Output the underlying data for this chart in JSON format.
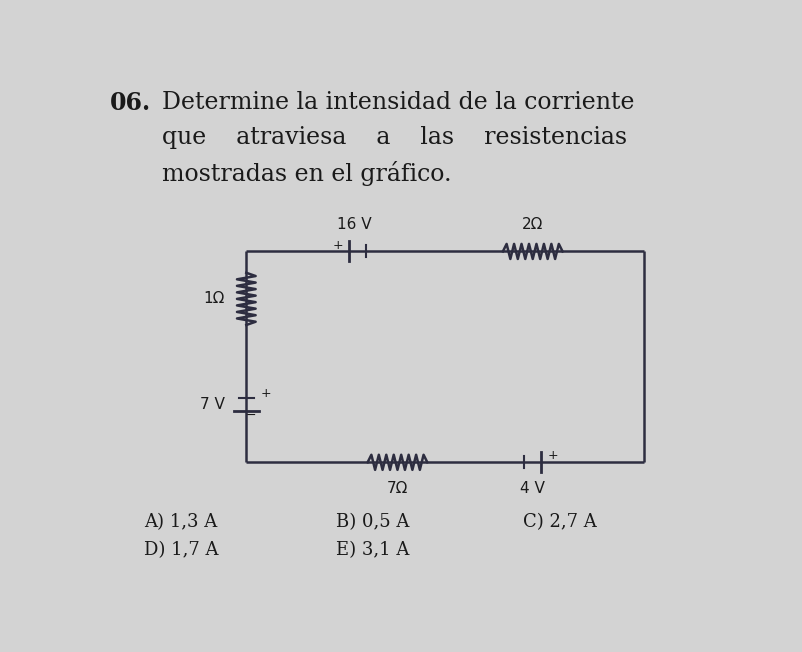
{
  "title_num": "06.",
  "title_line1": "Determine la intensidad de la corriente",
  "title_line2": "que    atraviesa    a    las    resistencias",
  "title_line3": "mostradas en el gráfico.",
  "bg_color": "#d3d3d3",
  "circuit_color": "#2d2d40",
  "text_color": "#1a1a1a",
  "answers": [
    "A) 1,3 A",
    "B) 0,5 A",
    "C) 2,7 A",
    "D) 1,7 A",
    "E) 3,1 A"
  ],
  "lbl_16V": "16 V",
  "lbl_2ohm": "2Ω",
  "lbl_1ohm": "1Ω",
  "lbl_7V": "7 V",
  "lbl_7ohm": "7Ω",
  "lbl_4V": "4 V",
  "L": 0.235,
  "R": 0.875,
  "T": 0.655,
  "B": 0.235
}
